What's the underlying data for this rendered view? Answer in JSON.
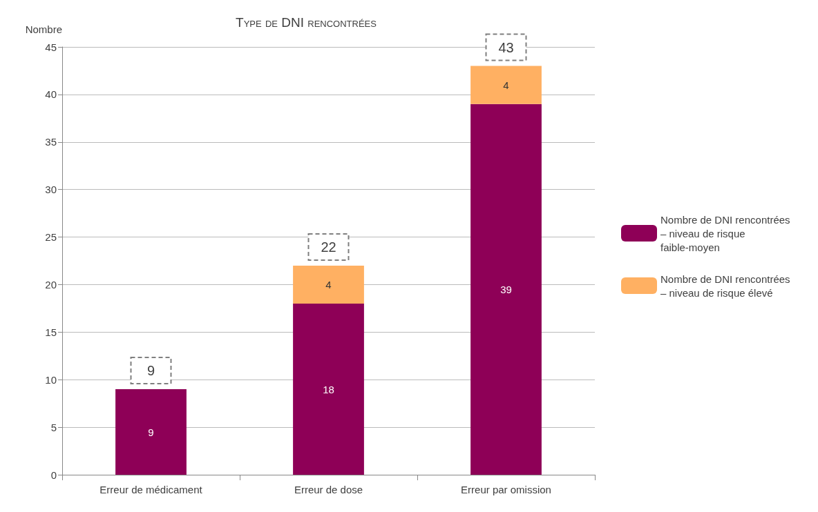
{
  "chart_data": {
    "type": "bar",
    "title": "Type de DNI rencontrées",
    "ylabel": "Nombre",
    "categories": [
      "Erreur de médicament",
      "Erreur de dose",
      "Erreur par omission"
    ],
    "series": [
      {
        "name": "Nombre de DNI rencontrées – niveau de risque faible-moyen",
        "color": "#8e0057",
        "values": [
          9,
          18,
          39
        ]
      },
      {
        "name": "Nombre de DNI rencontrées – niveau de risque élevé",
        "color": "#ffb062",
        "values": [
          null,
          4,
          4
        ]
      }
    ],
    "stacked": true,
    "data_labels": true,
    "totals": [
      "9",
      "22",
      "43"
    ],
    "ylim": [
      0,
      45
    ],
    "yticks": [
      0,
      5,
      10,
      15,
      20,
      25,
      30,
      35,
      40,
      45
    ],
    "grid": "y",
    "legend": "right"
  }
}
